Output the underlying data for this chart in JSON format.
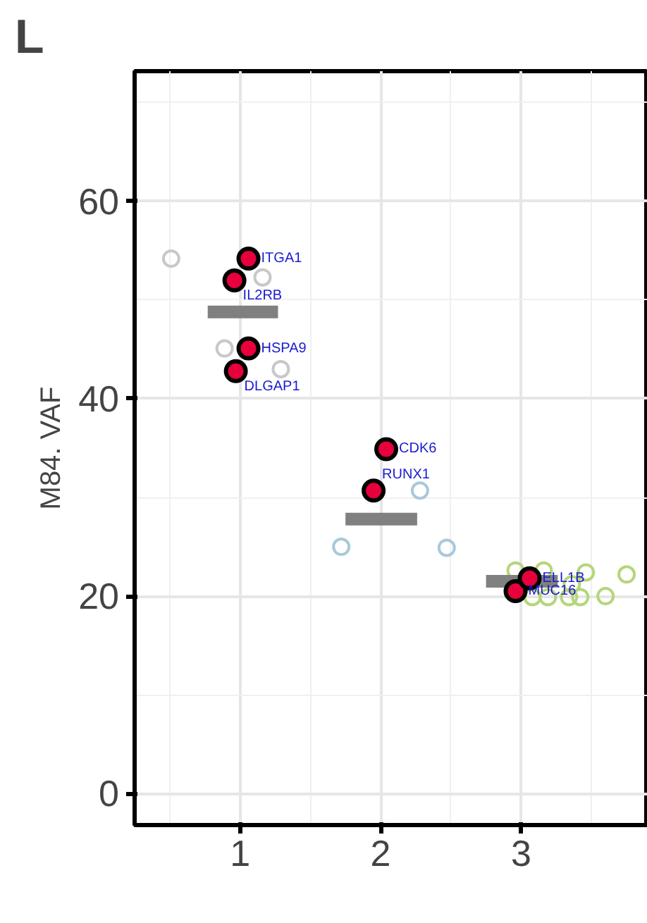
{
  "chart_data": {
    "type": "scatter",
    "title": "L",
    "ylabel": "M84. VAF",
    "xlim": [
      0.25,
      3.9
    ],
    "xticks": [
      1,
      2,
      3
    ],
    "ylim": [
      -3.2,
      73.2
    ],
    "yticks": [
      0,
      20,
      40,
      60
    ],
    "grid": true,
    "marker": "circle",
    "series": [
      {
        "color": "#c8c8c8",
        "x": [
          0.51,
          1.16,
          0.89,
          1.29
        ],
        "values": [
          54.2,
          52.3,
          45.1,
          43.0
        ]
      },
      {
        "color": "#a9c8dc",
        "x": [
          2.28,
          1.72,
          2.47
        ],
        "values": [
          30.7,
          25.0,
          24.9
        ]
      },
      {
        "color": "#b5d67a",
        "x": [
          2.96,
          3.16,
          3.46,
          3.08,
          3.19,
          3.34,
          3.42,
          3.36,
          3.75,
          3.6
        ],
        "values": [
          22.6,
          22.6,
          22.4,
          19.9,
          19.9,
          19.9,
          19.9,
          21.2,
          22.2,
          20.0
        ]
      },
      {
        "type": "line",
        "marker": "none",
        "color": "#808080",
        "x": [
          0.77,
          1.27
        ],
        "values": [
          48.8,
          48.8
        ]
      },
      {
        "type": "line",
        "marker": "none",
        "color": "#808080",
        "x": [
          1.75,
          2.26
        ],
        "values": [
          27.8,
          27.8
        ]
      },
      {
        "type": "line",
        "marker": "none",
        "color": "#808080",
        "x": [
          2.75,
          3.26
        ],
        "values": [
          21.5,
          21.5
        ]
      },
      {
        "color": "#e8003c",
        "x": [
          1.06,
          0.96,
          1.06,
          0.97,
          2.04,
          1.95,
          2.96,
          3.06
        ],
        "values": [
          54.2,
          52.0,
          45.1,
          42.8,
          34.9,
          30.7,
          20.5,
          21.8
        ]
      }
    ],
    "annotations": [
      {
        "text": "ITGA1",
        "x": 1.06,
        "y": 54.2
      },
      {
        "text": "IL2RB",
        "x": 0.96,
        "y": 52.0
      },
      {
        "text": "HSPA9",
        "x": 1.06,
        "y": 45.1
      },
      {
        "text": "DLGAP1",
        "x": 0.97,
        "y": 42.8
      },
      {
        "text": "CDK6",
        "x": 2.04,
        "y": 34.9
      },
      {
        "text": "RUNX1",
        "x": 1.95,
        "y": 30.7
      },
      {
        "text": "MUC16",
        "x": 2.96,
        "y": 20.5
      },
      {
        "text": "ELL1B",
        "x": 3.06,
        "y": 21.8
      }
    ]
  }
}
